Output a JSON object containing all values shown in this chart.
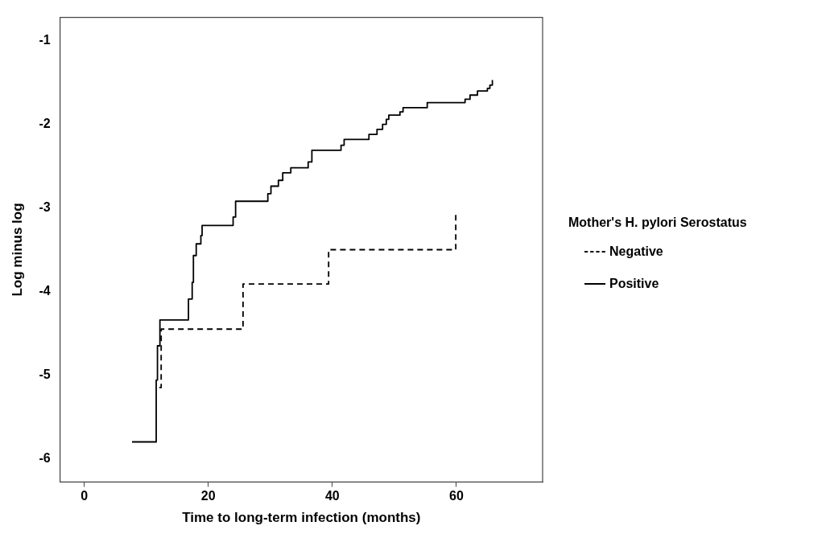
{
  "chart_data": {
    "type": "step",
    "xlabel": "Time to long-term infection (months)",
    "ylabel": "Log minus log",
    "legend_title": "Mother's H. pylori Serostatus",
    "legend": "right",
    "grid": false,
    "xlim": [
      -3.9,
      73.9
    ],
    "xticks": [
      0,
      20,
      40,
      60
    ],
    "ylim": [
      -6.28,
      -0.72
    ],
    "yticks": [
      -6,
      -5,
      -4,
      -3,
      -2,
      -1
    ],
    "series": [
      {
        "name": "Negative",
        "color": "#000000",
        "line_style": "dashed",
        "x": [
          12.1,
          12.4,
          25.6,
          39.4,
          59.9
        ],
        "values": [
          -5.15,
          -4.45,
          -3.91,
          -3.5,
          -3.06
        ]
      },
      {
        "name": "Positive",
        "color": "#000000",
        "line_style": "solid",
        "x": [
          7.7,
          11.6,
          11.8,
          12.2,
          16.8,
          17.4,
          17.6,
          18.05,
          18.8,
          19.0,
          24.0,
          24.4,
          29.6,
          30.1,
          31.3,
          32.0,
          33.3,
          36.1,
          36.7,
          41.4,
          41.9,
          45.9,
          47.2,
          48.1,
          48.7,
          49.1,
          50.9,
          51.4,
          55.3,
          61.4,
          62.2,
          63.4,
          65.0,
          65.4,
          65.8
        ],
        "values": [
          -5.8,
          -5.06,
          -4.65,
          -4.34,
          -4.09,
          -3.89,
          -3.57,
          -3.43,
          -3.33,
          -3.21,
          -3.11,
          -2.92,
          -2.83,
          -2.74,
          -2.67,
          -2.58,
          -2.52,
          -2.45,
          -2.31,
          -2.25,
          -2.18,
          -2.12,
          -2.06,
          -2.0,
          -1.94,
          -1.89,
          -1.85,
          -1.8,
          -1.74,
          -1.7,
          -1.65,
          -1.6,
          -1.57,
          -1.53,
          -1.47
        ]
      }
    ]
  }
}
